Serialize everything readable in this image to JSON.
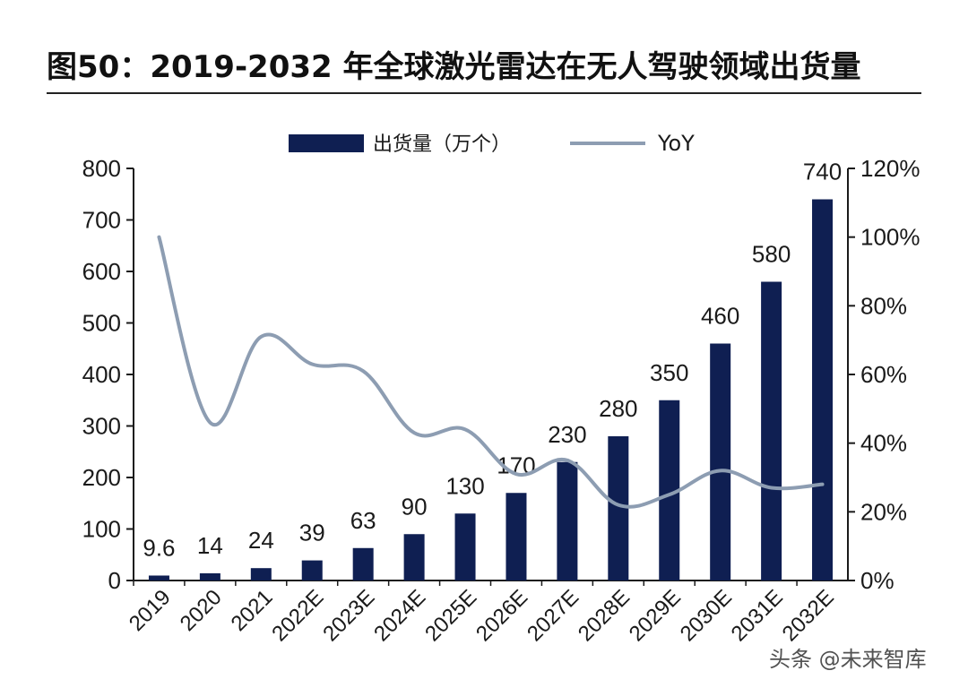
{
  "chart_data": {
    "type": "bar",
    "title": "图50：2019-2032 年全球激光雷达在无人驾驶领域出货量",
    "categories": [
      "2019",
      "2020",
      "2021",
      "2022E",
      "2023E",
      "2024E",
      "2025E",
      "2026E",
      "2027E",
      "2028E",
      "2029E",
      "2030E",
      "2031E",
      "2032E"
    ],
    "series": [
      {
        "name": "出货量（万个）",
        "kind": "bar",
        "axis": "left",
        "values": [
          9.6,
          14,
          24,
          39,
          63,
          90,
          130,
          170,
          230,
          280,
          350,
          460,
          580,
          740
        ],
        "labels": [
          "9.6",
          "14",
          "24",
          "39",
          "63",
          "90",
          "130",
          "170",
          "230",
          "280",
          "350",
          "460",
          "580",
          "740"
        ]
      },
      {
        "name": "YoY",
        "kind": "line",
        "axis": "right",
        "values": [
          100,
          46,
          71,
          63,
          61,
          43,
          44,
          31,
          35,
          22,
          25,
          32,
          27,
          28
        ],
        "smooth": true
      }
    ],
    "y_left": {
      "min": 0,
      "max": 800,
      "ticks": [
        "0",
        "100",
        "200",
        "300",
        "400",
        "500",
        "600",
        "700",
        "800"
      ]
    },
    "y_right": {
      "min": 0,
      "max": 120,
      "ticks": [
        "0%",
        "20%",
        "40%",
        "60%",
        "80%",
        "100%",
        "120%"
      ]
    },
    "grid": false,
    "legend_position": "top-center",
    "colors": {
      "bar": "#0f1f52",
      "line": "#8d9db2",
      "axis": "#1a1a1a",
      "title_rule": "#222222"
    }
  },
  "watermark": {
    "text": "头条 @未来智库"
  }
}
